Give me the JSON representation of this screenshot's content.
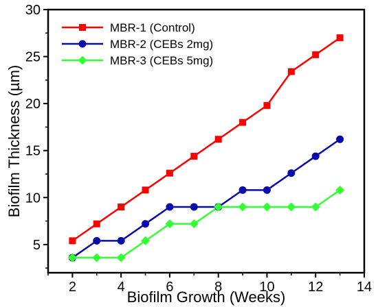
{
  "chart_data": {
    "type": "line",
    "title": "",
    "xlabel": "Biofilm Growth (Weeks)",
    "ylabel": "Biofilm Thickness (µm)",
    "xlim": [
      1,
      14
    ],
    "ylim": [
      2,
      30
    ],
    "x_ticks": [
      2,
      4,
      6,
      8,
      10,
      12,
      14
    ],
    "y_ticks": [
      5,
      10,
      15,
      20,
      25,
      30
    ],
    "legend_position": "top-left",
    "grid": false,
    "x": [
      2,
      3,
      4,
      5,
      6,
      7,
      8,
      9,
      10,
      11,
      12,
      13
    ],
    "series": [
      {
        "name": "MBR-1 (Control)",
        "color": "#ff0000",
        "marker": "square",
        "values": [
          5.4,
          7.2,
          9.0,
          10.8,
          12.6,
          14.4,
          16.2,
          18.0,
          19.8,
          23.4,
          25.2,
          27.0
        ]
      },
      {
        "name": "MBR-2 (CEBs 2mg)",
        "color": "#0a0aa8",
        "marker": "circle",
        "values": [
          3.6,
          5.4,
          5.4,
          7.2,
          9.0,
          9.0,
          9.0,
          10.8,
          10.8,
          12.6,
          14.4,
          16.2
        ]
      },
      {
        "name": "MBR-3 (CEBs 5mg)",
        "color": "#33ff33",
        "marker": "diamond",
        "values": [
          3.6,
          3.6,
          3.6,
          5.4,
          7.2,
          7.2,
          9.0,
          9.0,
          9.0,
          9.0,
          9.0,
          10.8
        ]
      }
    ]
  }
}
